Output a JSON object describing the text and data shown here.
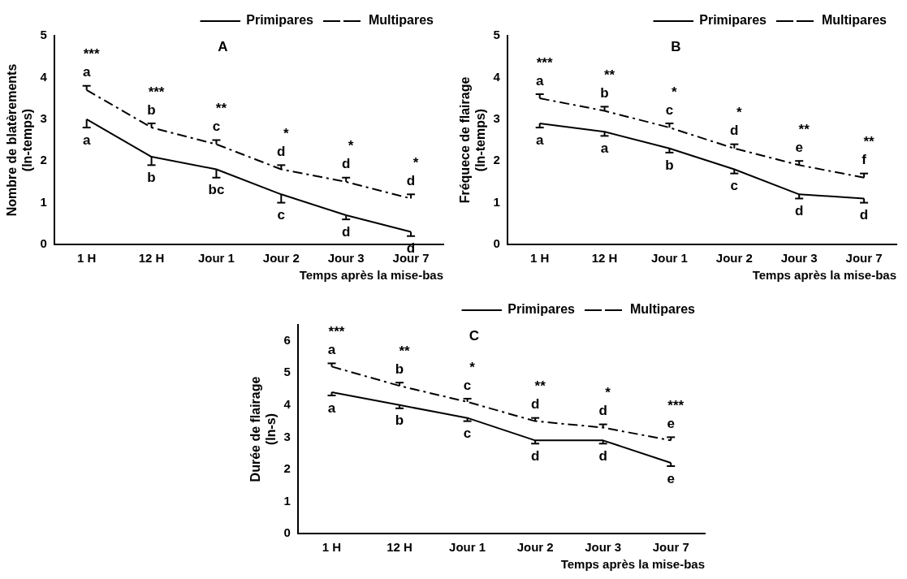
{
  "chart_data": [
    {
      "type": "line",
      "title": "A",
      "xlabel": "Temps après la mise-bas",
      "ylabel": "Nombre de blatèrements\n(ln-temps)",
      "categories": [
        "1 H",
        "12 H",
        "Jour 1",
        "Jour 2",
        "Jour 3",
        "Jour 7"
      ],
      "ylim": [
        0,
        5
      ],
      "yticks": [
        0,
        1,
        2,
        3,
        4,
        5
      ],
      "grid": false,
      "legend": "top right",
      "marker": "none",
      "series": [
        {
          "name": "Primipares",
          "color": "#000000",
          "line_style": "solid",
          "values": [
            3.0,
            2.1,
            1.8,
            1.2,
            0.7,
            0.3
          ],
          "errors": [
            [
              2.8,
              3.0
            ],
            [
              1.9,
              2.1
            ],
            [
              1.6,
              1.8
            ],
            [
              1.0,
              1.2
            ],
            [
              0.6,
              0.7
            ],
            [
              0.2,
              0.3
            ]
          ],
          "value_labels": [
            "a",
            "b",
            "bc",
            "c",
            "d",
            "d"
          ]
        },
        {
          "name": "Multipares",
          "color": "#000000",
          "line_style": "dashed",
          "values": [
            3.7,
            2.8,
            2.4,
            1.8,
            1.5,
            1.1
          ],
          "errors": [
            [
              3.7,
              3.8
            ],
            [
              2.8,
              2.9
            ],
            [
              2.4,
              2.5
            ],
            [
              1.8,
              1.9
            ],
            [
              1.5,
              1.6
            ],
            [
              1.1,
              1.2
            ]
          ],
          "value_labels": [
            "a",
            "b",
            "c",
            "d",
            "d",
            "d"
          ]
        }
      ],
      "annotations": [
        "***",
        "***",
        "**",
        "*",
        "*",
        "*"
      ]
    },
    {
      "type": "line",
      "title": "B",
      "xlabel": "Temps après la mise-bas",
      "ylabel": "Fréquece de flairage\n(ln-temps)",
      "categories": [
        "1 H",
        "12 H",
        "Jour 1",
        "Jour 2",
        "Jour 3",
        "Jour 7"
      ],
      "ylim": [
        0,
        5
      ],
      "yticks": [
        0,
        1,
        2,
        3,
        4,
        5
      ],
      "grid": false,
      "legend": "top right",
      "marker": "none",
      "series": [
        {
          "name": "Primipares",
          "color": "#000000",
          "line_style": "solid",
          "values": [
            2.9,
            2.7,
            2.3,
            1.8,
            1.2,
            1.1
          ],
          "errors": [
            [
              2.8,
              2.9
            ],
            [
              2.6,
              2.7
            ],
            [
              2.2,
              2.3
            ],
            [
              1.7,
              1.8
            ],
            [
              1.1,
              1.2
            ],
            [
              1.0,
              1.1
            ]
          ],
          "value_labels": [
            "a",
            "a",
            "b",
            "c",
            "d",
            "d"
          ]
        },
        {
          "name": "Multipares",
          "color": "#000000",
          "line_style": "dashed",
          "values": [
            3.5,
            3.2,
            2.8,
            2.3,
            1.9,
            1.6
          ],
          "errors": [
            [
              3.5,
              3.6
            ],
            [
              3.2,
              3.3
            ],
            [
              2.8,
              2.9
            ],
            [
              2.3,
              2.4
            ],
            [
              1.9,
              2.0
            ],
            [
              1.6,
              1.7
            ]
          ],
          "value_labels": [
            "a",
            "b",
            "c",
            "d",
            "e",
            "f"
          ]
        }
      ],
      "annotations": [
        "***",
        "**",
        "*",
        "*",
        "**",
        "**"
      ]
    },
    {
      "type": "line",
      "title": "C",
      "xlabel": "Temps après la mise-bas",
      "ylabel": "Durée de flairage\n(ln-s)",
      "categories": [
        "1 H",
        "12 H",
        "Jour 1",
        "Jour 2",
        "Jour 3",
        "Jour 7"
      ],
      "ylim": [
        0,
        6.5
      ],
      "yticks": [
        0,
        1,
        2,
        3,
        4,
        5,
        6
      ],
      "grid": false,
      "legend": "top right",
      "marker": "none",
      "series": [
        {
          "name": "Primipares",
          "color": "#000000",
          "line_style": "solid",
          "values": [
            4.4,
            4.0,
            3.6,
            2.9,
            2.9,
            2.2
          ],
          "errors": [
            [
              4.3,
              4.4
            ],
            [
              3.9,
              4.0
            ],
            [
              3.5,
              3.6
            ],
            [
              2.8,
              2.9
            ],
            [
              2.8,
              2.9
            ],
            [
              2.1,
              2.2
            ]
          ],
          "value_labels": [
            "a",
            "b",
            "c",
            "d",
            "d",
            "e"
          ]
        },
        {
          "name": "Multipares",
          "color": "#000000",
          "line_style": "dashed",
          "values": [
            5.2,
            4.6,
            4.1,
            3.5,
            3.3,
            2.9
          ],
          "errors": [
            [
              5.2,
              5.3
            ],
            [
              4.6,
              4.7
            ],
            [
              4.1,
              4.2
            ],
            [
              3.5,
              3.6
            ],
            [
              3.3,
              3.4
            ],
            [
              2.9,
              3.0
            ]
          ],
          "value_labels": [
            "a",
            "b",
            "c",
            "d",
            "d",
            "e"
          ]
        }
      ],
      "annotations": [
        "***",
        "**",
        "*",
        "**",
        "*",
        "***"
      ]
    }
  ]
}
